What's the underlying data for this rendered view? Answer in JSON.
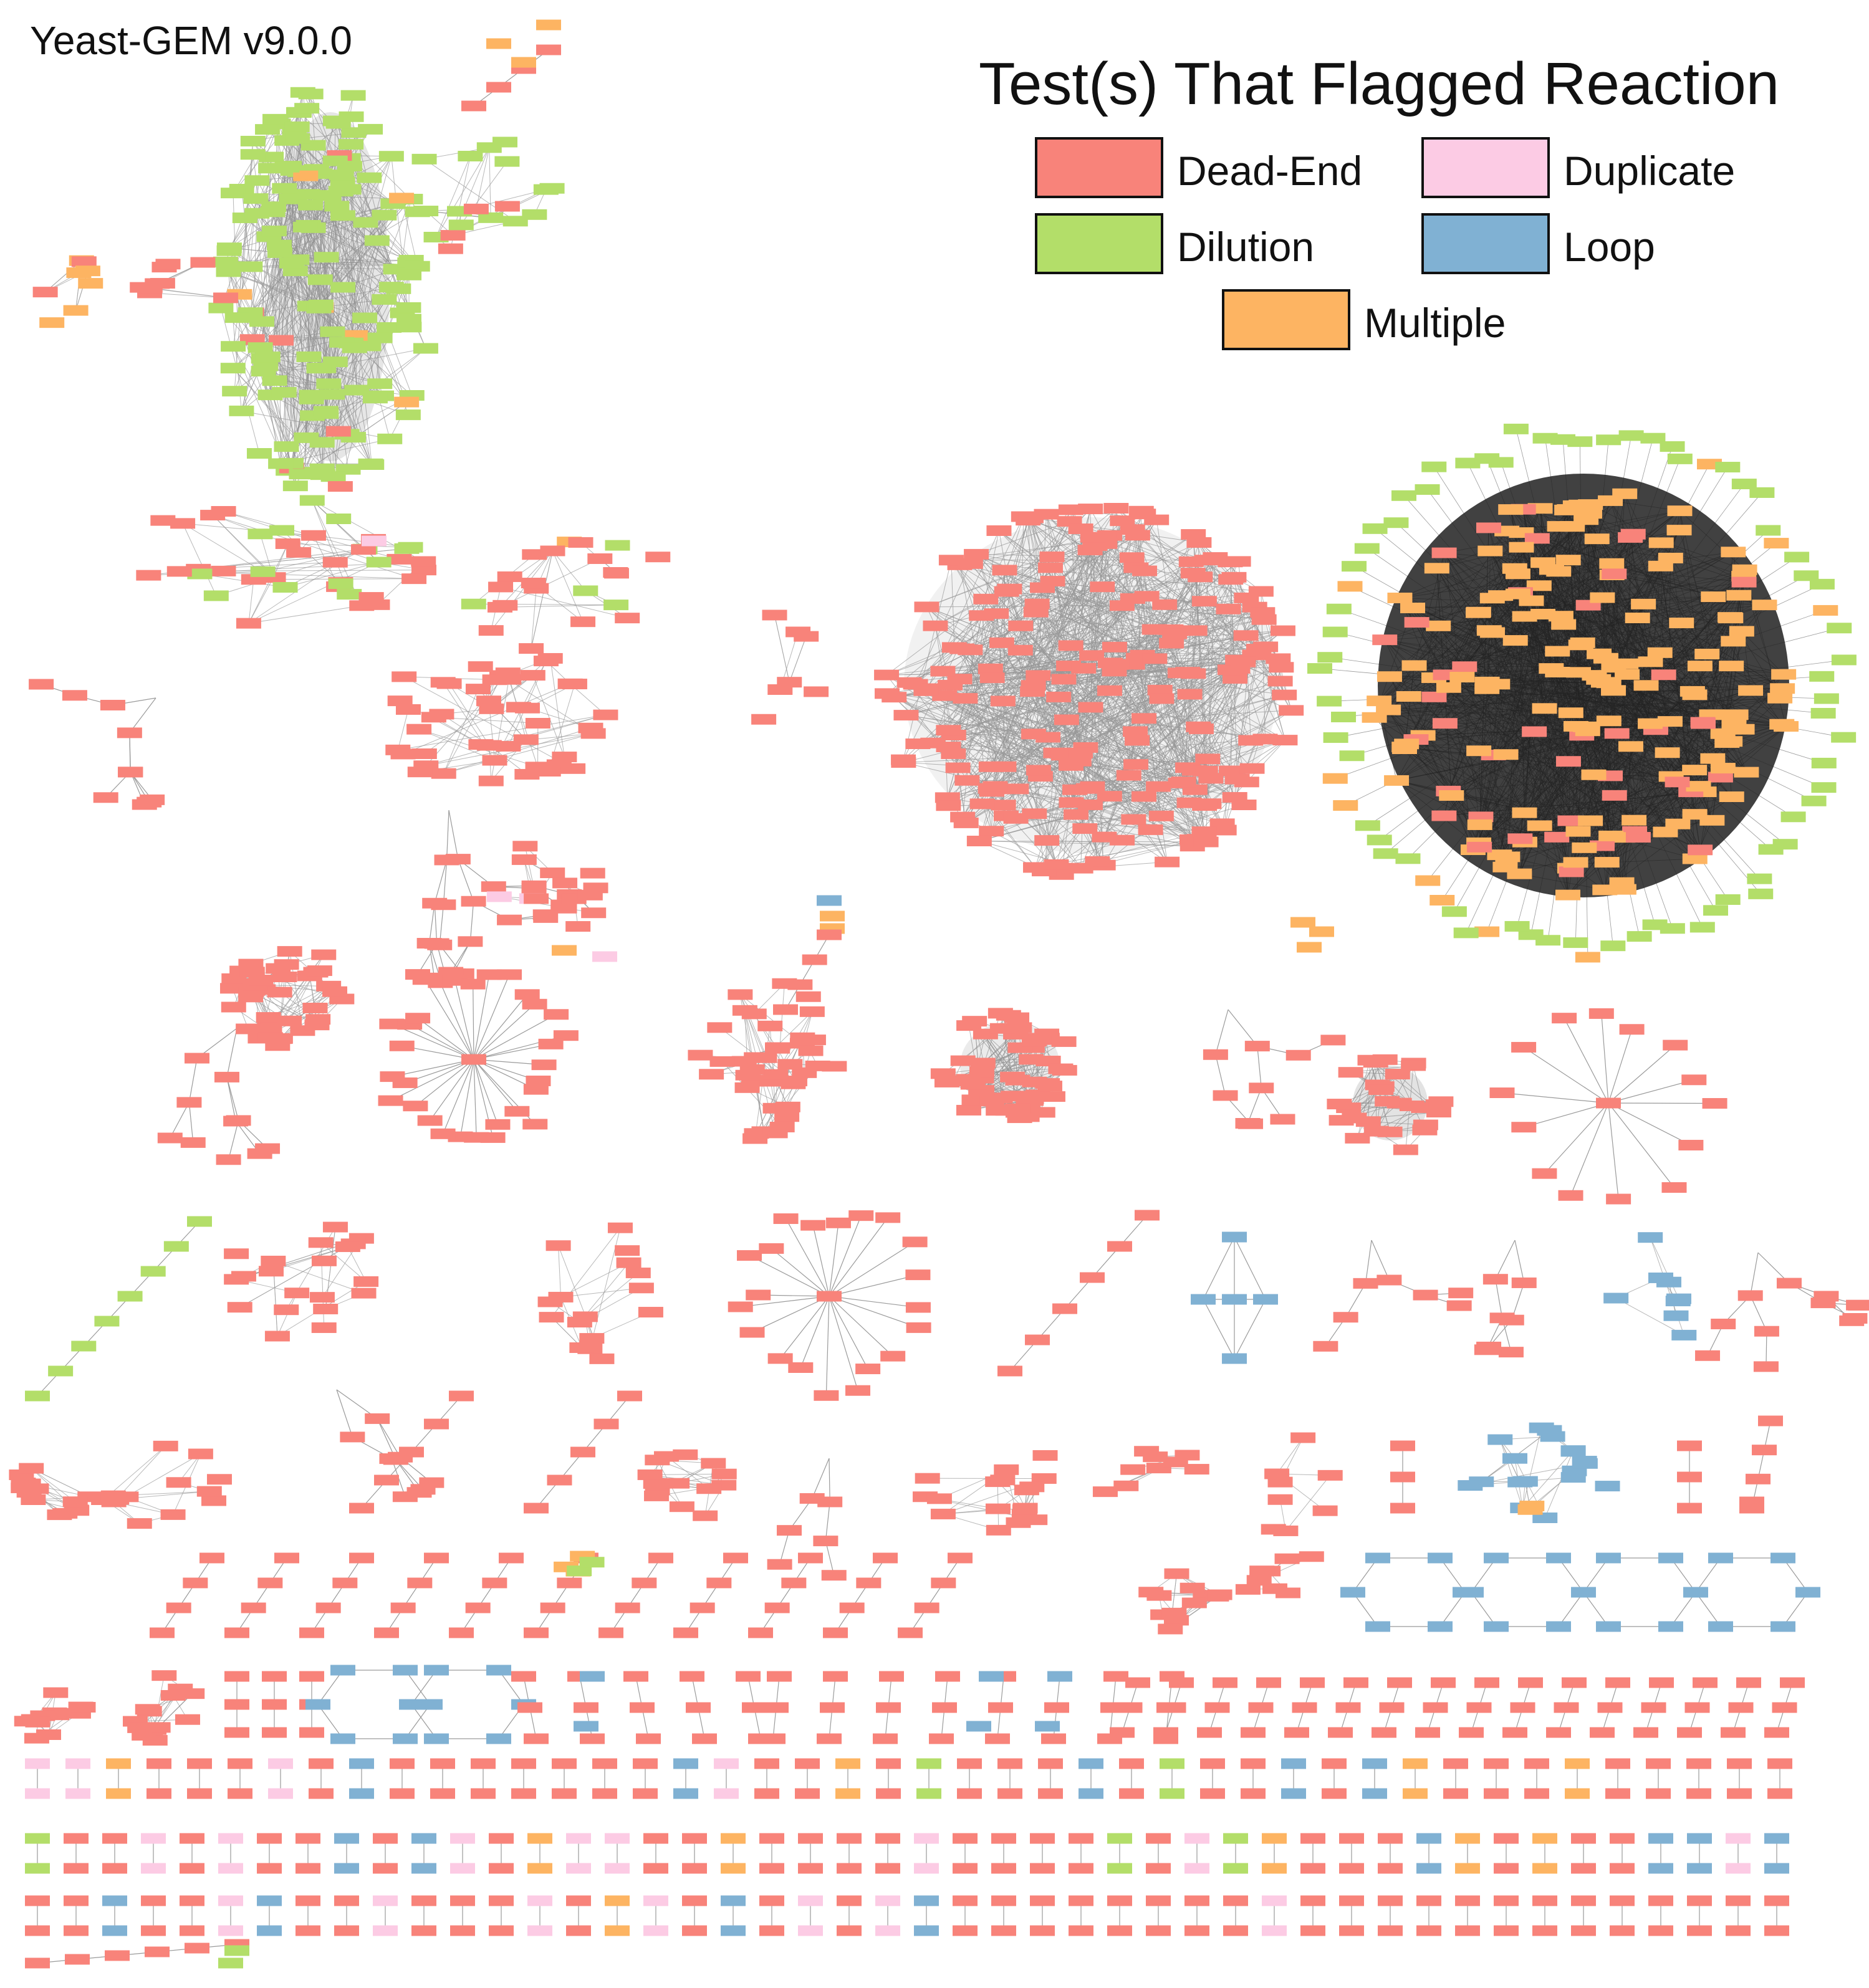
{
  "title": "Yeast-GEM v9.0.0",
  "legend": {
    "title": "Test(s) That Flagged Reaction",
    "items": [
      {
        "key": "dead_end",
        "label": "Dead-End",
        "color": "#f8837a"
      },
      {
        "key": "duplicate",
        "label": "Duplicate",
        "color": "#fccbe4"
      },
      {
        "key": "dilution",
        "label": "Dilution",
        "color": "#b3de69"
      },
      {
        "key": "loop",
        "label": "Loop",
        "color": "#80b1d3"
      },
      {
        "key": "multiple",
        "label": "Multiple",
        "color": "#fdb462"
      }
    ]
  },
  "colors": {
    "edge": "#9a9a9a",
    "dense_edge": "#333333",
    "node_border": "none"
  }
}
